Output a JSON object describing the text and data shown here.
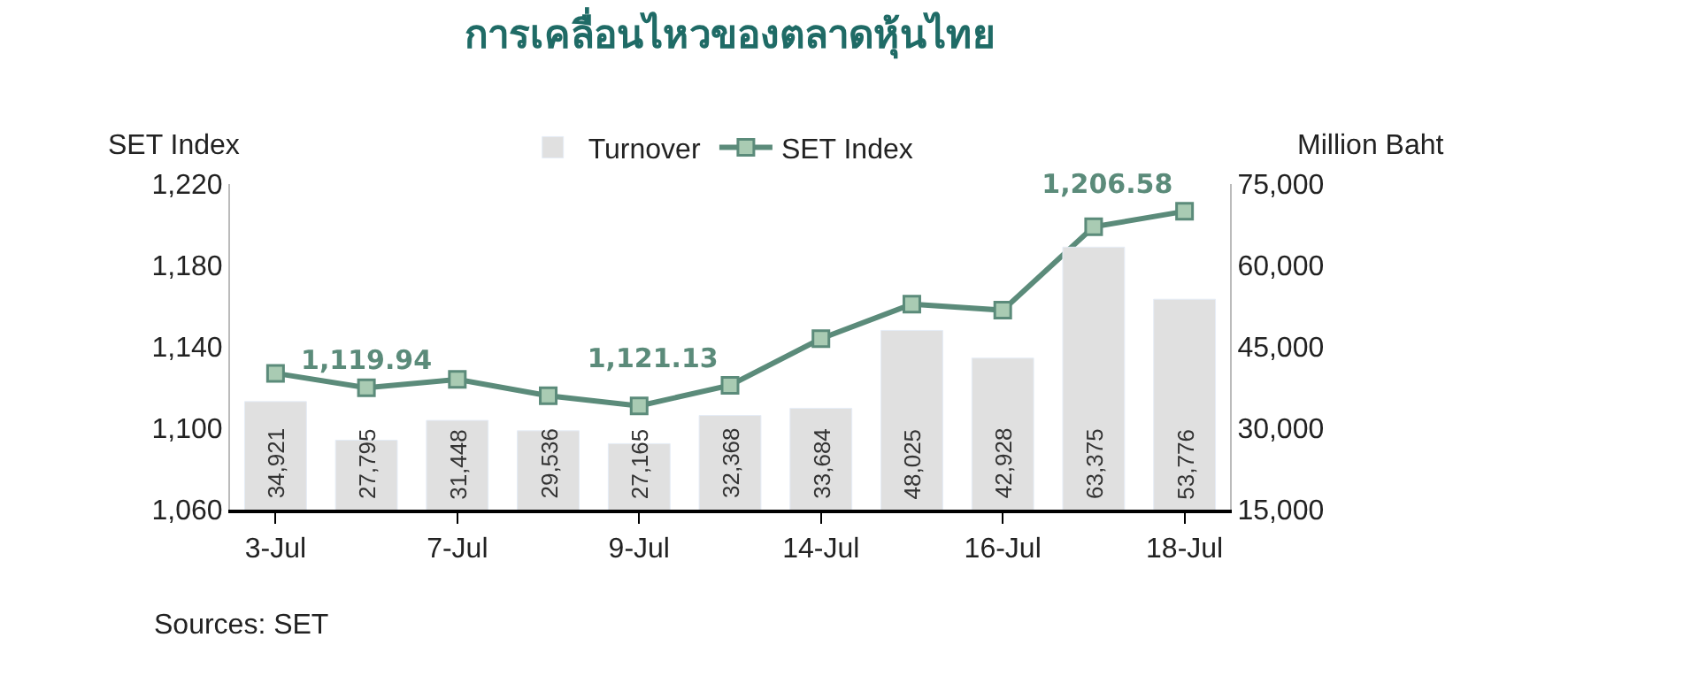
{
  "chart_data": {
    "type": "bar",
    "title": "การเคลื่อนไหวของตลาดหุ้นไทย",
    "ylabel": "SET Index",
    "y2label": "Million Baht",
    "categories": [
      "3-Jul",
      null,
      "7-Jul",
      null,
      "9-Jul",
      null,
      "14-Jul",
      null,
      "16-Jul",
      null,
      "18-Jul"
    ],
    "series": [
      {
        "name": "Turnover",
        "axis": "y2",
        "color": "#e0e0e0",
        "values": [
          34921,
          27795,
          31448,
          29536,
          27165,
          32368,
          33684,
          48025,
          42928,
          63375,
          53776
        ],
        "value_labels": [
          "34,921",
          "27,795",
          "31,448",
          "29,536",
          "27,165",
          "32,368",
          "33,684",
          "48,025",
          "42,928",
          "63,375",
          "53,776"
        ]
      },
      {
        "name": "SET Index",
        "type": "line",
        "axis": "y",
        "color": "#5b8b7a",
        "marker": "square",
        "line_style": "solid",
        "values": [
          1127,
          1119.94,
          1124,
          1116,
          1111,
          1121.13,
          1144,
          1161,
          1158,
          1199,
          1206.58
        ],
        "value_labels": [
          null,
          "1,119.94",
          null,
          null,
          null,
          "1,121.13",
          null,
          null,
          null,
          null,
          "1,206.58"
        ]
      }
    ],
    "ylim": [
      1060,
      1220
    ],
    "yticks": [
      {
        "value": 1060,
        "label": "1,060"
      },
      {
        "value": 1100,
        "label": "1,100"
      },
      {
        "value": 1140,
        "label": "1,140"
      },
      {
        "value": 1180,
        "label": "1,180"
      },
      {
        "value": 1220,
        "label": "1,220"
      }
    ],
    "y2lim": [
      15000,
      75000
    ],
    "y2ticks": [
      {
        "value": 15000,
        "label": "15,000"
      },
      {
        "value": 30000,
        "label": "30,000"
      },
      {
        "value": 45000,
        "label": "45,000"
      },
      {
        "value": 60000,
        "label": "60,000"
      },
      {
        "value": 75000,
        "label": "75,000"
      }
    ],
    "legend": "top",
    "annotations": [
      "Sources: SET"
    ]
  }
}
